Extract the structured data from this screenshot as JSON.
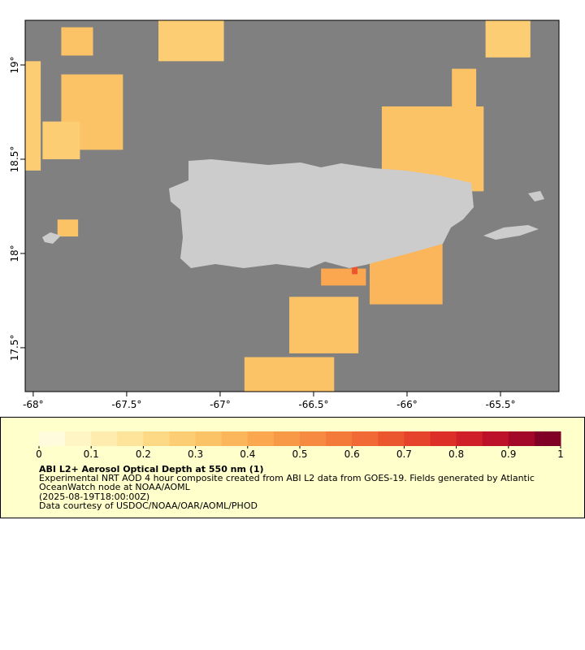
{
  "chart_data": {
    "type": "map",
    "title": "ABI L2+ Aerosol Optical Depth at 550 nm (1)",
    "description": "Experimental NRT AOD 4 hour composite created from ABI L2 data from GOES-19. Fields generated by Atlantic OceanWatch node at NOAA/AOML",
    "timestamp": "(2025-08-19T18:00:00Z)",
    "credit": "Data courtesy of USDOC/NOAA/OAR/AOML/PHOD",
    "xlim": [
      -68.043,
      -65.187
    ],
    "ylim": [
      17.267,
      19.237
    ],
    "xticks": [
      {
        "value": -68,
        "label": "-68°"
      },
      {
        "value": -67.5,
        "label": "-67.5°"
      },
      {
        "value": -67,
        "label": "-67°"
      },
      {
        "value": -66.5,
        "label": "-66.5°"
      },
      {
        "value": -66,
        "label": "-66°"
      },
      {
        "value": -65.5,
        "label": "-65.5°"
      }
    ],
    "yticks": [
      {
        "value": 17.5,
        "label": "17.5°"
      },
      {
        "value": 18,
        "label": "18°"
      },
      {
        "value": 18.5,
        "label": "18.5°"
      },
      {
        "value": 19,
        "label": "19°"
      }
    ],
    "colorbar_lim": [
      0,
      1
    ],
    "colorbar_ticks": [
      0,
      0.1,
      0.2,
      0.3,
      0.4,
      0.5,
      0.6,
      0.7,
      0.8,
      0.9,
      1
    ],
    "colormap": [
      "#fffbdc",
      "#fff4c4",
      "#feecae",
      "#fee39a",
      "#fdd985",
      "#fdcd74",
      "#fcc266",
      "#fbb55b",
      "#faa750",
      "#f89947",
      "#f68a40",
      "#f47a3a",
      "#f16934",
      "#ec562f",
      "#e5432b",
      "#dc2f28",
      "#cf1f28",
      "#bd1129",
      "#a30828",
      "#800026"
    ],
    "patches": [
      {
        "lon": [
          -67.85,
          -67.52
        ],
        "lat": [
          18.55,
          18.95
        ],
        "aod": 0.32
      },
      {
        "lon": [
          -67.95,
          -67.75
        ],
        "lat": [
          18.5,
          18.7
        ],
        "aod": 0.28
      },
      {
        "lon": [
          -67.85,
          -67.68
        ],
        "lat": [
          19.05,
          19.2
        ],
        "aod": 0.3
      },
      {
        "lon": [
          -67.33,
          -66.98
        ],
        "lat": [
          19.02,
          19.237
        ],
        "aod": 0.25
      },
      {
        "lon": [
          -66.135,
          -65.59
        ],
        "lat": [
          18.33,
          18.78
        ],
        "aod": 0.33
      },
      {
        "lon": [
          -65.76,
          -65.63
        ],
        "lat": [
          18.78,
          18.98
        ],
        "aod": 0.3
      },
      {
        "lon": [
          -65.58,
          -65.34
        ],
        "lat": [
          19.04,
          19.237
        ],
        "aod": 0.25
      },
      {
        "lon": [
          -66.2,
          -65.81
        ],
        "lat": [
          17.73,
          18.05
        ],
        "aod": 0.38
      },
      {
        "lon": [
          -66.46,
          -66.22
        ],
        "lat": [
          17.83,
          17.92
        ],
        "aod": 0.4
      },
      {
        "lon": [
          -66.295,
          -66.265
        ],
        "lat": [
          17.89,
          17.93
        ],
        "aod": 0.65
      },
      {
        "lon": [
          -66.63,
          -66.26
        ],
        "lat": [
          17.47,
          17.77
        ],
        "aod": 0.33
      },
      {
        "lon": [
          -66.87,
          -66.39
        ],
        "lat": [
          17.267,
          17.45
        ],
        "aod": 0.3
      },
      {
        "lon": [
          -67.87,
          -67.76
        ],
        "lat": [
          18.09,
          18.18
        ],
        "aod": 0.3
      },
      {
        "lon": [
          -68.043,
          -67.96
        ],
        "lat": [
          18.44,
          19.02
        ],
        "aod": 0.25
      }
    ]
  }
}
